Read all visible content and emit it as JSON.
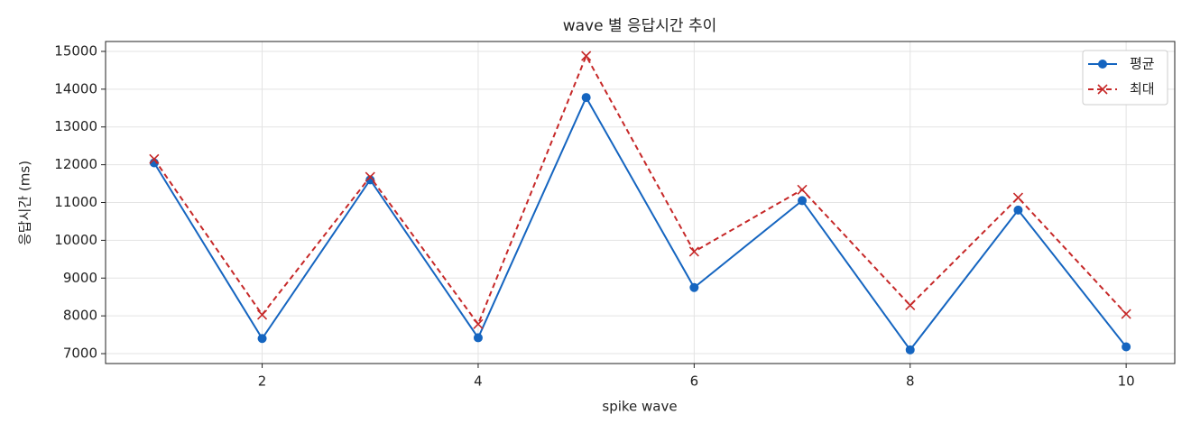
{
  "chart_data": {
    "type": "line",
    "title": "wave 별 응답시간 추이",
    "xlabel": "spike wave",
    "ylabel": "응답시간 (ms)",
    "x": [
      1,
      2,
      3,
      4,
      5,
      6,
      7,
      8,
      9,
      10
    ],
    "series": [
      {
        "name": "평균",
        "color": "#1565c0",
        "marker": "o",
        "linestyle": "solid",
        "values": [
          12050,
          7400,
          11600,
          7420,
          13780,
          8750,
          11050,
          7100,
          10800,
          7180
        ]
      },
      {
        "name": "최대",
        "color": "#c62828",
        "marker": "x",
        "linestyle": "dashed",
        "values": [
          12150,
          8030,
          11680,
          7780,
          14880,
          9700,
          11340,
          8280,
          11130,
          8050
        ]
      }
    ],
    "xlim": [
      0.55,
      10.45
    ],
    "xticks": [
      2,
      4,
      6,
      8,
      10
    ],
    "ylim": [
      6738,
      15262
    ],
    "yticks": [
      7000,
      8000,
      9000,
      10000,
      11000,
      12000,
      13000,
      14000,
      15000
    ],
    "grid": true,
    "legend": "upper right"
  }
}
